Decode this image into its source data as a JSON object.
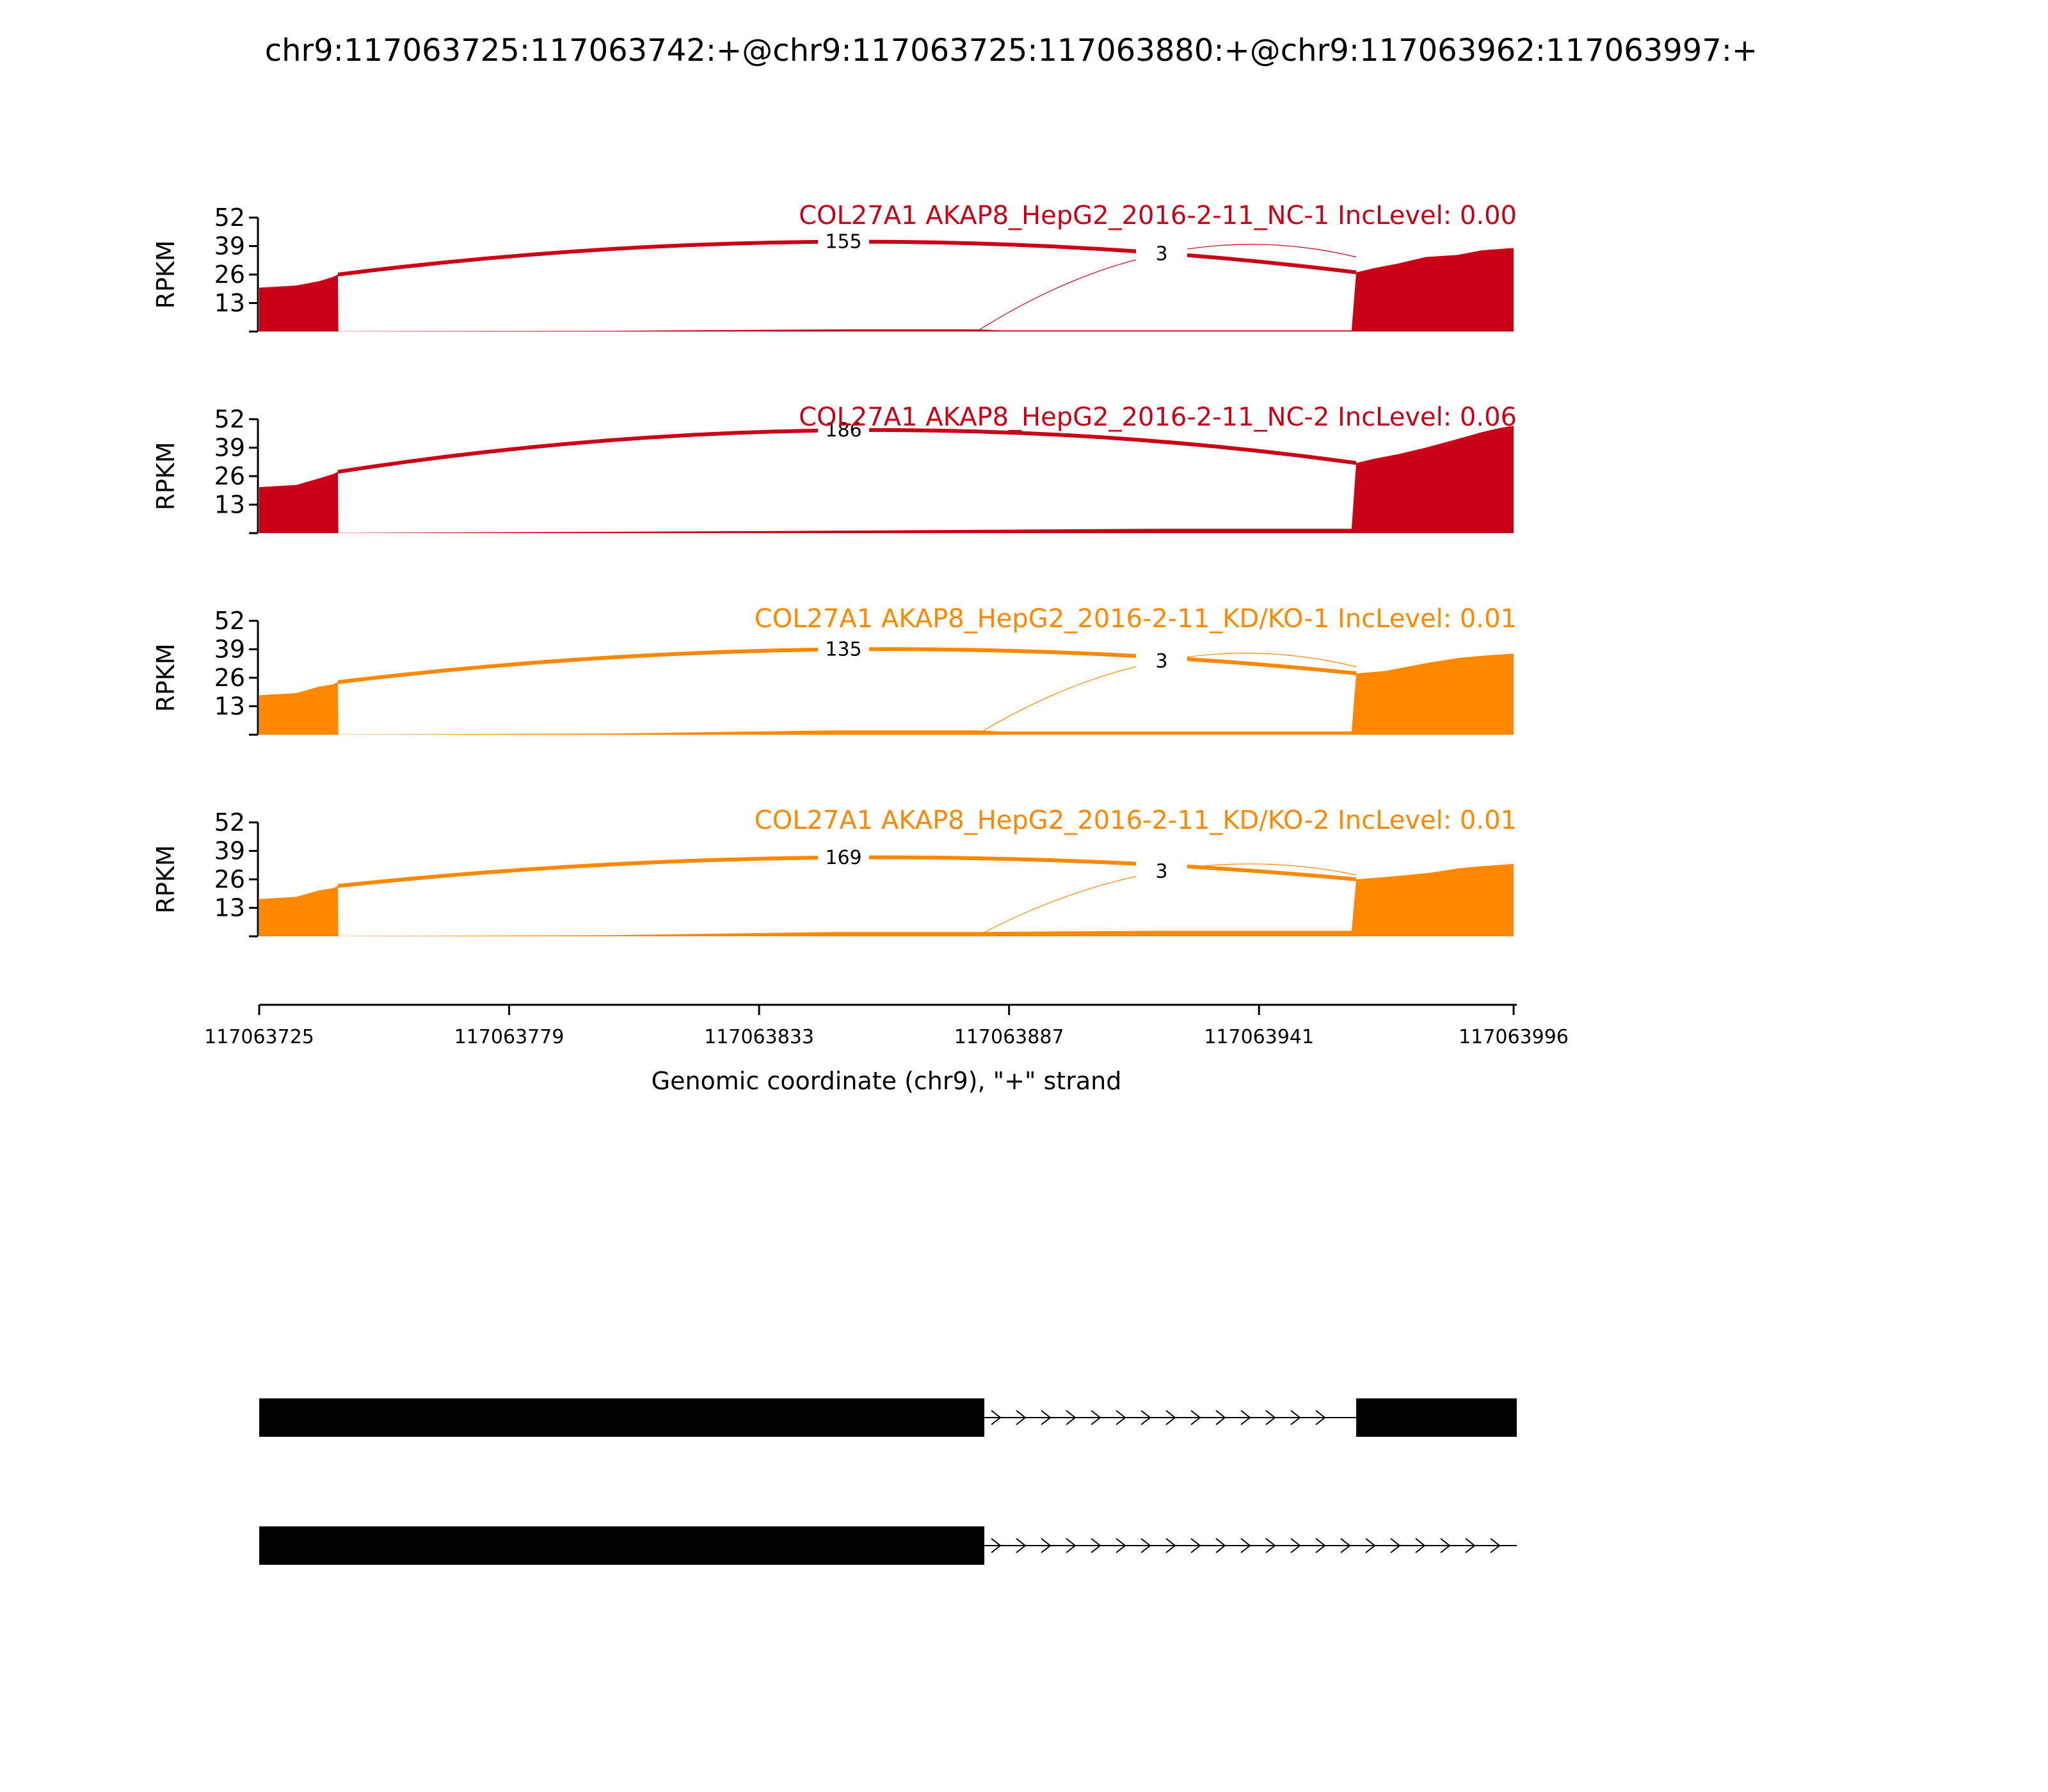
{
  "chart_data": {
    "type": "area",
    "title": "chr9:117063725:117063742:+@chr9:117063725:117063880:+@chr9:117063962:117063997:+",
    "ylabel": "RPKM",
    "xlabel": "Genomic coordinate (chr9), \"+\" strand",
    "x_range": [
      117063725,
      117063996
    ],
    "x_ticks": [
      "117063725",
      "117063779",
      "117063833",
      "117063887",
      "117063941",
      "117063996"
    ],
    "y_range": [
      0,
      52
    ],
    "y_ticks": [
      "13",
      "26",
      "39",
      "52"
    ],
    "colors": {
      "NC": "#c90016",
      "KD": "#ff8800",
      "track": "#000000"
    },
    "series": [
      {
        "name": "COL27A1 AKAP8_HepG2_2016-2-11_NC-1 IncLevel: 0.00",
        "color": "#c90016",
        "coverage": [
          [
            117063725,
            20
          ],
          [
            117063733,
            21
          ],
          [
            117063738,
            23
          ],
          [
            117063741,
            25
          ],
          [
            117063742,
            26
          ],
          [
            117063742.1,
            0.1
          ],
          [
            117063800,
            0.3
          ],
          [
            117063850,
            1
          ],
          [
            117063880,
            1
          ],
          [
            117063885,
            0.5
          ],
          [
            117063961,
            0.5
          ],
          [
            117063962,
            27
          ],
          [
            117063966,
            29
          ],
          [
            117063971,
            31
          ],
          [
            117063977,
            34
          ],
          [
            117063984,
            35
          ],
          [
            117063989,
            37
          ],
          [
            117063995,
            38
          ],
          [
            117063996,
            38
          ]
        ],
        "junctions": [
          {
            "label": "155",
            "from": 117063742,
            "to": 117063962,
            "peak": 41
          },
          {
            "label": "3",
            "from": 117063880,
            "to": 117063962,
            "peak": 36
          }
        ]
      },
      {
        "name": "COL27A1 AKAP8_HepG2_2016-2-11_NC-2 IncLevel: 0.06",
        "color": "#c90016",
        "coverage": [
          [
            117063725,
            21
          ],
          [
            117063733,
            22
          ],
          [
            117063738,
            25
          ],
          [
            117063741,
            27
          ],
          [
            117063742,
            28
          ],
          [
            117063742.1,
            0.1
          ],
          [
            117063790,
            0.5
          ],
          [
            117063840,
            1
          ],
          [
            117063880,
            1.5
          ],
          [
            117063920,
            2
          ],
          [
            117063961,
            2
          ],
          [
            117063962,
            32
          ],
          [
            117063966,
            34
          ],
          [
            117063971,
            36
          ],
          [
            117063977,
            39
          ],
          [
            117063984,
            43
          ],
          [
            117063989,
            46
          ],
          [
            117063993,
            48
          ],
          [
            117063996,
            49
          ]
        ],
        "junctions": [
          {
            "label": "186",
            "from": 117063742,
            "to": 117063962,
            "peak": 47
          }
        ]
      },
      {
        "name": "COL27A1 AKAP8_HepG2_2016-2-11_KD/KO-1 IncLevel: 0.01",
        "color": "#ff8800",
        "coverage": [
          [
            117063725,
            18
          ],
          [
            117063733,
            19
          ],
          [
            117063738,
            22
          ],
          [
            117063741,
            23
          ],
          [
            117063742,
            24
          ],
          [
            117063742.1,
            0.1
          ],
          [
            117063800,
            0.5
          ],
          [
            117063850,
            2
          ],
          [
            117063880,
            2
          ],
          [
            117063885,
            1.5
          ],
          [
            117063961,
            1.5
          ],
          [
            117063962,
            28
          ],
          [
            117063968,
            29
          ],
          [
            117063973,
            31
          ],
          [
            117063978,
            33
          ],
          [
            117063984,
            35
          ],
          [
            117063989,
            36
          ],
          [
            117063996,
            37
          ]
        ],
        "junctions": [
          {
            "label": "135",
            "from": 117063742,
            "to": 117063962,
            "peak": 39
          },
          {
            "label": "3",
            "from": 117063880,
            "to": 117063962,
            "peak": 34
          }
        ]
      },
      {
        "name": "COL27A1 AKAP8_HepG2_2016-2-11_KD/KO-2 IncLevel: 0.01",
        "color": "#ff8800",
        "coverage": [
          [
            117063725,
            17
          ],
          [
            117063733,
            18
          ],
          [
            117063738,
            21
          ],
          [
            117063741,
            22
          ],
          [
            117063742,
            23
          ],
          [
            117063742.1,
            0.1
          ],
          [
            117063800,
            0.5
          ],
          [
            117063850,
            2
          ],
          [
            117063880,
            2
          ],
          [
            117063920,
            2.5
          ],
          [
            117063961,
            2.5
          ],
          [
            117063962,
            26
          ],
          [
            117063968,
            27
          ],
          [
            117063973,
            28
          ],
          [
            117063978,
            29
          ],
          [
            117063984,
            31
          ],
          [
            117063989,
            32
          ],
          [
            117063996,
            33
          ]
        ],
        "junctions": [
          {
            "label": "169",
            "from": 117063742,
            "to": 117063962,
            "peak": 36
          },
          {
            "label": "3",
            "from": 117063880,
            "to": 117063962,
            "peak": 30
          }
        ]
      }
    ],
    "transcripts": [
      {
        "exons": [
          [
            117063725,
            117063880
          ],
          [
            117063962,
            117063997
          ]
        ],
        "intron_direction": "+"
      },
      {
        "exons": [
          [
            117063725,
            117063880
          ]
        ],
        "intron_direction": "+",
        "line_to": 117063997
      }
    ]
  }
}
